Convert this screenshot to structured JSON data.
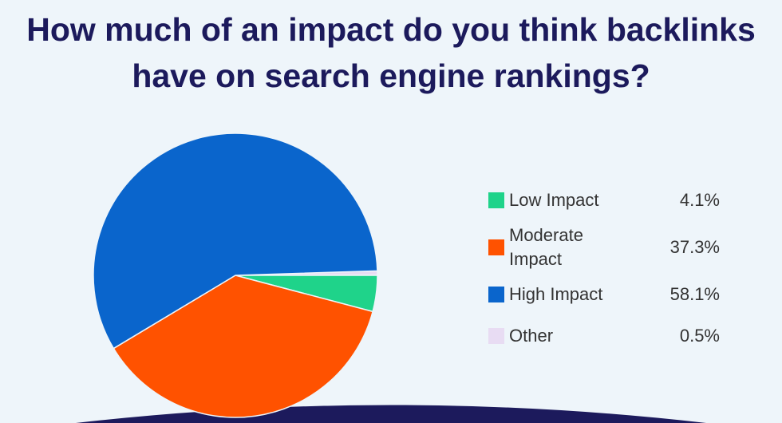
{
  "chart_data": {
    "type": "pie",
    "title": "How much of an impact do you think backlinks have on search engine rankings?",
    "categories": [
      "Low Impact",
      "Moderate Impact",
      "High Impact",
      "Other"
    ],
    "values": [
      4.1,
      37.3,
      58.1,
      0.5
    ],
    "value_labels": [
      "4.1%",
      "37.3%",
      "58.1%",
      "0.5%"
    ],
    "colors": [
      "#1fd38a",
      "#ff5200",
      "#0a65cc",
      "#e8dcf3"
    ]
  }
}
